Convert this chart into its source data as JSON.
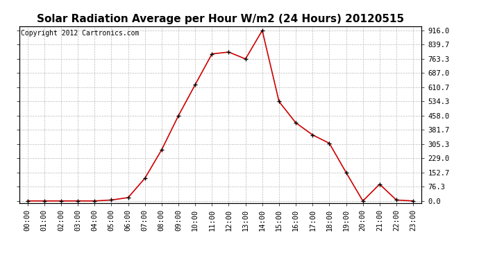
{
  "title": "Solar Radiation Average per Hour W/m2 (24 Hours) 20120515",
  "copyright": "Copyright 2012 Cartronics.com",
  "hours": [
    "00:00",
    "01:00",
    "02:00",
    "03:00",
    "04:00",
    "05:00",
    "06:00",
    "07:00",
    "08:00",
    "09:00",
    "10:00",
    "11:00",
    "12:00",
    "13:00",
    "14:00",
    "15:00",
    "16:00",
    "17:00",
    "18:00",
    "19:00",
    "20:00",
    "21:00",
    "22:00",
    "23:00"
  ],
  "values": [
    0,
    0,
    0,
    0,
    0,
    5,
    18,
    122,
    275,
    458,
    625,
    790,
    800,
    763,
    916,
    534,
    420,
    355,
    310,
    153,
    0,
    90,
    5,
    0
  ],
  "line_color": "#cc0000",
  "marker": "+",
  "marker_color": "#000000",
  "bg_color": "#ffffff",
  "grid_color": "#bbbbbb",
  "ylim_min": -10,
  "ylim_max": 940,
  "yticks": [
    0.0,
    76.3,
    152.7,
    229.0,
    305.3,
    381.7,
    458.0,
    534.3,
    610.7,
    687.0,
    763.3,
    839.7,
    916.0
  ],
  "title_fontsize": 11,
  "copyright_fontsize": 7,
  "tick_fontsize": 7.5,
  "marker_size": 4,
  "line_width": 1.2
}
